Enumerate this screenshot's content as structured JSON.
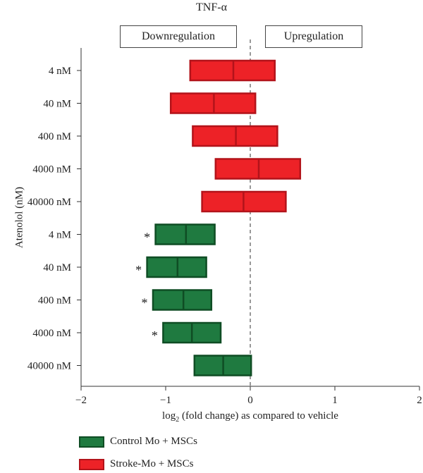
{
  "chart_data": {
    "type": "bar",
    "title": "TNF-α",
    "header_left": "Downregulation",
    "header_right": "Upregulation",
    "ylabel": "Atenolol (nM)",
    "xlabel_prefix": "log",
    "xlabel_sub": "2",
    "xlabel_suffix": " (fold change) as compared to vehicle",
    "xlim": [
      -2,
      2
    ],
    "xticks": [
      "−2",
      "−1",
      "0",
      "1",
      "2"
    ],
    "xtick_values": [
      -2,
      -1,
      0,
      1,
      2
    ],
    "categories": [
      "4 nM",
      "40 nM",
      "400 nM",
      "4000 nM",
      "40000 nM",
      "4 nM",
      "40 nM",
      "400 nM",
      "4000 nM",
      "40000 nM"
    ],
    "series": [
      {
        "name": "Stroke-Mo + MSCs",
        "color": "#ed2227",
        "edge": "#b3131a",
        "boxes": [
          {
            "low": -0.71,
            "mid": -0.2,
            "high": 0.29,
            "sig": ""
          },
          {
            "low": -0.94,
            "mid": -0.43,
            "high": 0.06,
            "sig": ""
          },
          {
            "low": -0.68,
            "mid": -0.17,
            "high": 0.32,
            "sig": ""
          },
          {
            "low": -0.41,
            "mid": 0.1,
            "high": 0.59,
            "sig": ""
          },
          {
            "low": -0.57,
            "mid": -0.08,
            "high": 0.42,
            "sig": ""
          }
        ]
      },
      {
        "name": "Control Mo + MSCs",
        "color": "#1f7a40",
        "edge": "#0f4d24",
        "boxes": [
          {
            "low": -1.12,
            "mid": -0.76,
            "high": -0.42,
            "sig": "*"
          },
          {
            "low": -1.22,
            "mid": -0.86,
            "high": -0.52,
            "sig": "*"
          },
          {
            "low": -1.15,
            "mid": -0.79,
            "high": -0.46,
            "sig": "*"
          },
          {
            "low": -1.03,
            "mid": -0.69,
            "high": -0.35,
            "sig": "*"
          },
          {
            "low": -0.66,
            "mid": -0.32,
            "high": 0.01,
            "sig": ""
          }
        ]
      }
    ],
    "legend": [
      {
        "label": "Control Mo + MSCs",
        "color": "#1f7a40",
        "edge": "#0f4d24"
      },
      {
        "label": "Stroke-Mo + MSCs",
        "color": "#ed2227",
        "edge": "#b3131a"
      }
    ]
  }
}
